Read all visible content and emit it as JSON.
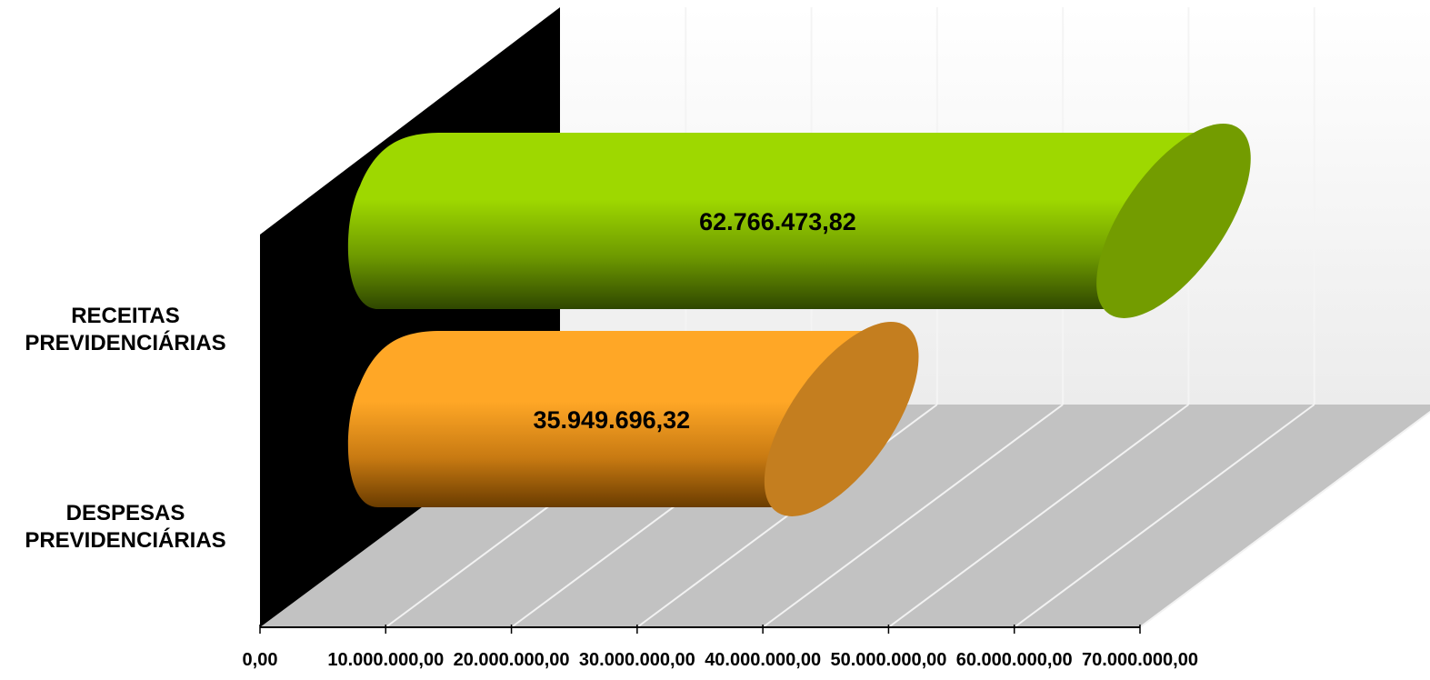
{
  "chart_data": {
    "type": "bar",
    "orientation": "horizontal",
    "style": "3d-cylinder",
    "categories": [
      "RECEITAS PREVIDENCIÁRIAS",
      "DESPESAS PREVIDENCIÁRIAS"
    ],
    "category_lines": [
      [
        "RECEITAS",
        "PREVIDENCIÁRIAS"
      ],
      [
        "DESPESAS",
        "PREVIDENCIÁRIAS"
      ]
    ],
    "values": [
      62766473.82,
      35949696.32
    ],
    "data_labels": [
      "62.766.473,82",
      "35.949.696,32"
    ],
    "bar_colors": [
      "#9ed800",
      "#ffa726"
    ],
    "xlim": [
      0,
      70000000
    ],
    "x_ticks": [
      0,
      10000000,
      20000000,
      30000000,
      40000000,
      50000000,
      60000000,
      70000000
    ],
    "x_tick_labels": [
      "0,00",
      "10.000.000,00",
      "20.000.000,00",
      "30.000.000,00",
      "40.000.000,00",
      "50.000.000,00",
      "60.000.000,00",
      "70.000.000,00"
    ],
    "grid": true,
    "legend": "none",
    "title": "",
    "xlabel": "",
    "ylabel": ""
  }
}
